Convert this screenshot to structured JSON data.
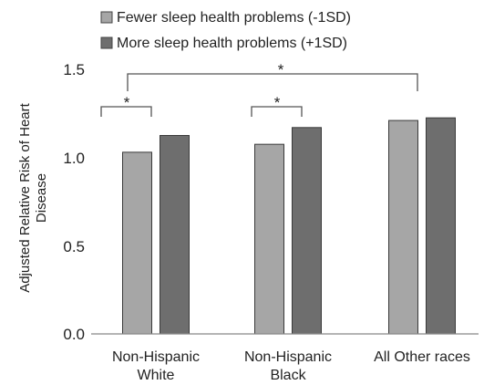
{
  "chart_data": {
    "type": "bar",
    "title": "",
    "xlabel": "",
    "ylabel": [
      "Adjusted  Relative Risk of Heart",
      "Disease"
    ],
    "ylim": [
      0,
      1.5
    ],
    "yticks": [
      "0.0",
      "0.5",
      "1.0",
      "1.5"
    ],
    "grid": false,
    "legend_position": "top",
    "categories": [
      [
        "Non-Hispanic",
        "White"
      ],
      [
        "Non-Hispanic",
        "Black"
      ],
      [
        "All Other races"
      ]
    ],
    "series": [
      {
        "name": "Fewer sleep health problems (-1SD)",
        "color": "#a6a6a6",
        "values": [
          1.03,
          1.075,
          1.21
        ]
      },
      {
        "name": "More sleep health problems (+1SD)",
        "color": "#6e6e6e",
        "values": [
          1.125,
          1.17,
          1.225
        ]
      }
    ],
    "annotations": [
      {
        "type": "bracket",
        "label": "*",
        "from": "Non-Hispanic White, Fewer sleep health problems (-1SD)",
        "to": "Non-Hispanic White, More sleep health problems (+1SD)"
      },
      {
        "type": "bracket",
        "label": "*",
        "from": "Non-Hispanic Black, Fewer sleep health problems (-1SD)",
        "to": "Non-Hispanic Black, More sleep health problems (+1SD)"
      },
      {
        "type": "bracket",
        "label": "*",
        "from": "Non-Hispanic White, Fewer sleep health problems (-1SD)",
        "to": "All Other races, Fewer sleep health problems (-1SD)"
      }
    ]
  }
}
